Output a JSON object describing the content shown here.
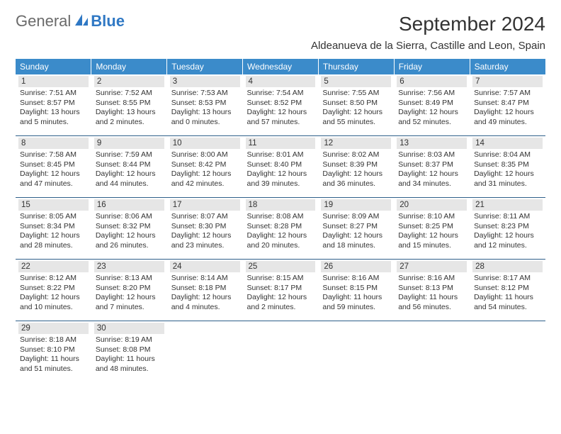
{
  "logo": {
    "text_general": "General",
    "text_blue": "Blue"
  },
  "title": "September 2024",
  "location": "Aldeanueva de la Sierra, Castille and Leon, Spain",
  "colors": {
    "header_bg": "#3b8bca",
    "header_text": "#ffffff",
    "daynum_bg": "#e6e6e6",
    "rule": "#2e5f8a",
    "logo_gray": "#6a6a6a",
    "logo_blue": "#2f78c4"
  },
  "weekdays": [
    "Sunday",
    "Monday",
    "Tuesday",
    "Wednesday",
    "Thursday",
    "Friday",
    "Saturday"
  ],
  "weeks": [
    [
      {
        "n": "1",
        "sr": "Sunrise: 7:51 AM",
        "ss": "Sunset: 8:57 PM",
        "d1": "Daylight: 13 hours",
        "d2": "and 5 minutes."
      },
      {
        "n": "2",
        "sr": "Sunrise: 7:52 AM",
        "ss": "Sunset: 8:55 PM",
        "d1": "Daylight: 13 hours",
        "d2": "and 2 minutes."
      },
      {
        "n": "3",
        "sr": "Sunrise: 7:53 AM",
        "ss": "Sunset: 8:53 PM",
        "d1": "Daylight: 13 hours",
        "d2": "and 0 minutes."
      },
      {
        "n": "4",
        "sr": "Sunrise: 7:54 AM",
        "ss": "Sunset: 8:52 PM",
        "d1": "Daylight: 12 hours",
        "d2": "and 57 minutes."
      },
      {
        "n": "5",
        "sr": "Sunrise: 7:55 AM",
        "ss": "Sunset: 8:50 PM",
        "d1": "Daylight: 12 hours",
        "d2": "and 55 minutes."
      },
      {
        "n": "6",
        "sr": "Sunrise: 7:56 AM",
        "ss": "Sunset: 8:49 PM",
        "d1": "Daylight: 12 hours",
        "d2": "and 52 minutes."
      },
      {
        "n": "7",
        "sr": "Sunrise: 7:57 AM",
        "ss": "Sunset: 8:47 PM",
        "d1": "Daylight: 12 hours",
        "d2": "and 49 minutes."
      }
    ],
    [
      {
        "n": "8",
        "sr": "Sunrise: 7:58 AM",
        "ss": "Sunset: 8:45 PM",
        "d1": "Daylight: 12 hours",
        "d2": "and 47 minutes."
      },
      {
        "n": "9",
        "sr": "Sunrise: 7:59 AM",
        "ss": "Sunset: 8:44 PM",
        "d1": "Daylight: 12 hours",
        "d2": "and 44 minutes."
      },
      {
        "n": "10",
        "sr": "Sunrise: 8:00 AM",
        "ss": "Sunset: 8:42 PM",
        "d1": "Daylight: 12 hours",
        "d2": "and 42 minutes."
      },
      {
        "n": "11",
        "sr": "Sunrise: 8:01 AM",
        "ss": "Sunset: 8:40 PM",
        "d1": "Daylight: 12 hours",
        "d2": "and 39 minutes."
      },
      {
        "n": "12",
        "sr": "Sunrise: 8:02 AM",
        "ss": "Sunset: 8:39 PM",
        "d1": "Daylight: 12 hours",
        "d2": "and 36 minutes."
      },
      {
        "n": "13",
        "sr": "Sunrise: 8:03 AM",
        "ss": "Sunset: 8:37 PM",
        "d1": "Daylight: 12 hours",
        "d2": "and 34 minutes."
      },
      {
        "n": "14",
        "sr": "Sunrise: 8:04 AM",
        "ss": "Sunset: 8:35 PM",
        "d1": "Daylight: 12 hours",
        "d2": "and 31 minutes."
      }
    ],
    [
      {
        "n": "15",
        "sr": "Sunrise: 8:05 AM",
        "ss": "Sunset: 8:34 PM",
        "d1": "Daylight: 12 hours",
        "d2": "and 28 minutes."
      },
      {
        "n": "16",
        "sr": "Sunrise: 8:06 AM",
        "ss": "Sunset: 8:32 PM",
        "d1": "Daylight: 12 hours",
        "d2": "and 26 minutes."
      },
      {
        "n": "17",
        "sr": "Sunrise: 8:07 AM",
        "ss": "Sunset: 8:30 PM",
        "d1": "Daylight: 12 hours",
        "d2": "and 23 minutes."
      },
      {
        "n": "18",
        "sr": "Sunrise: 8:08 AM",
        "ss": "Sunset: 8:28 PM",
        "d1": "Daylight: 12 hours",
        "d2": "and 20 minutes."
      },
      {
        "n": "19",
        "sr": "Sunrise: 8:09 AM",
        "ss": "Sunset: 8:27 PM",
        "d1": "Daylight: 12 hours",
        "d2": "and 18 minutes."
      },
      {
        "n": "20",
        "sr": "Sunrise: 8:10 AM",
        "ss": "Sunset: 8:25 PM",
        "d1": "Daylight: 12 hours",
        "d2": "and 15 minutes."
      },
      {
        "n": "21",
        "sr": "Sunrise: 8:11 AM",
        "ss": "Sunset: 8:23 PM",
        "d1": "Daylight: 12 hours",
        "d2": "and 12 minutes."
      }
    ],
    [
      {
        "n": "22",
        "sr": "Sunrise: 8:12 AM",
        "ss": "Sunset: 8:22 PM",
        "d1": "Daylight: 12 hours",
        "d2": "and 10 minutes."
      },
      {
        "n": "23",
        "sr": "Sunrise: 8:13 AM",
        "ss": "Sunset: 8:20 PM",
        "d1": "Daylight: 12 hours",
        "d2": "and 7 minutes."
      },
      {
        "n": "24",
        "sr": "Sunrise: 8:14 AM",
        "ss": "Sunset: 8:18 PM",
        "d1": "Daylight: 12 hours",
        "d2": "and 4 minutes."
      },
      {
        "n": "25",
        "sr": "Sunrise: 8:15 AM",
        "ss": "Sunset: 8:17 PM",
        "d1": "Daylight: 12 hours",
        "d2": "and 2 minutes."
      },
      {
        "n": "26",
        "sr": "Sunrise: 8:16 AM",
        "ss": "Sunset: 8:15 PM",
        "d1": "Daylight: 11 hours",
        "d2": "and 59 minutes."
      },
      {
        "n": "27",
        "sr": "Sunrise: 8:16 AM",
        "ss": "Sunset: 8:13 PM",
        "d1": "Daylight: 11 hours",
        "d2": "and 56 minutes."
      },
      {
        "n": "28",
        "sr": "Sunrise: 8:17 AM",
        "ss": "Sunset: 8:12 PM",
        "d1": "Daylight: 11 hours",
        "d2": "and 54 minutes."
      }
    ],
    [
      {
        "n": "29",
        "sr": "Sunrise: 8:18 AM",
        "ss": "Sunset: 8:10 PM",
        "d1": "Daylight: 11 hours",
        "d2": "and 51 minutes."
      },
      {
        "n": "30",
        "sr": "Sunrise: 8:19 AM",
        "ss": "Sunset: 8:08 PM",
        "d1": "Daylight: 11 hours",
        "d2": "and 48 minutes."
      },
      null,
      null,
      null,
      null,
      null
    ]
  ]
}
